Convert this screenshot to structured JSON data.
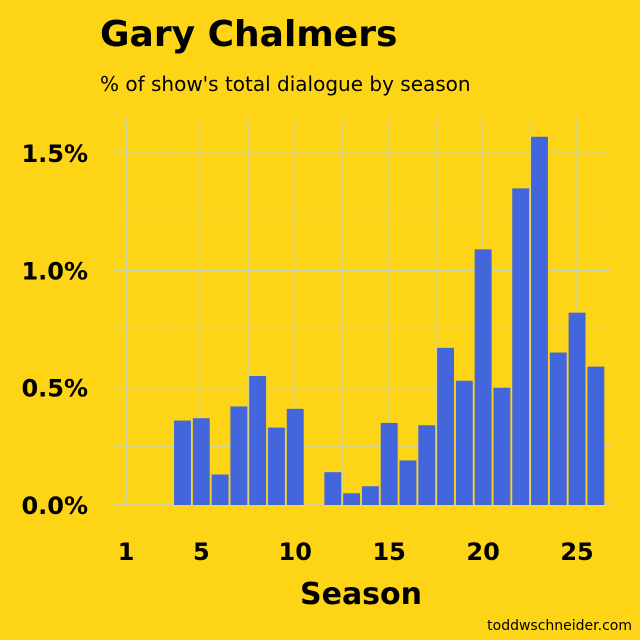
{
  "chart_data": {
    "type": "bar",
    "title": "Gary Chalmers",
    "subtitle": "% of show's total dialogue by season",
    "xlabel": "Season",
    "ylabel": "",
    "x": [
      1,
      2,
      3,
      4,
      5,
      6,
      7,
      8,
      9,
      10,
      11,
      12,
      13,
      14,
      15,
      16,
      17,
      18,
      19,
      20,
      21,
      22,
      23,
      24,
      25,
      26
    ],
    "values": [
      0,
      0,
      0,
      0.36,
      0.37,
      0.13,
      0.42,
      0.55,
      0.33,
      0.41,
      0,
      0.14,
      0.05,
      0.08,
      0.35,
      0.19,
      0.34,
      0.67,
      0.53,
      1.09,
      0.5,
      1.35,
      1.57,
      0.65,
      0.82,
      0.59
    ],
    "xticks": [
      1,
      5,
      10,
      15,
      20,
      25
    ],
    "xtick_labels": [
      "1",
      "5",
      "10",
      "15",
      "20",
      "25"
    ],
    "yticks": [
      0,
      0.5,
      1.0,
      1.5
    ],
    "ytick_labels": [
      "0.0%",
      "0.5%",
      "1.0%",
      "1.5%"
    ],
    "xlim": [
      0.3,
      26.7
    ],
    "ylim": [
      0,
      1.65
    ],
    "grid": true,
    "colors": {
      "bar": "#4466DD",
      "background": "#FDD516",
      "grid": "#C8D4B4"
    }
  },
  "credit": "toddwschneider.com"
}
